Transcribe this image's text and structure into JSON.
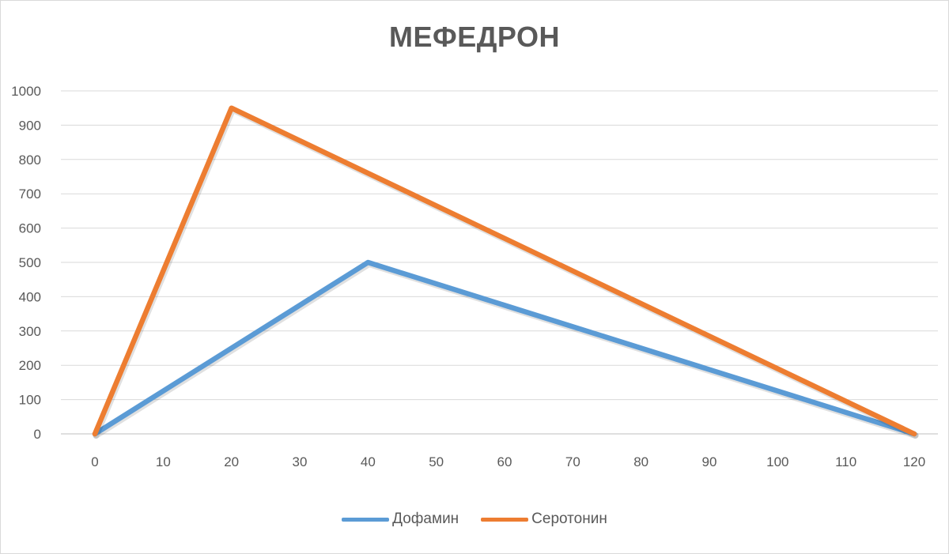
{
  "chart_data": {
    "type": "line",
    "title": "МЕФЕДРОН",
    "x": [
      0,
      20,
      40,
      120
    ],
    "x_ticks": [
      0,
      10,
      20,
      30,
      40,
      50,
      60,
      70,
      80,
      90,
      100,
      110,
      120
    ],
    "y_ticks": [
      0,
      100,
      200,
      300,
      400,
      500,
      600,
      700,
      800,
      900,
      1000
    ],
    "xlim": [
      0,
      120
    ],
    "ylim": [
      0,
      1000
    ],
    "grid": true,
    "legend_position": "bottom",
    "series": [
      {
        "name": "Дофамин",
        "color": "#5b9bd5",
        "points": [
          [
            0,
            0
          ],
          [
            40,
            500
          ],
          [
            120,
            0
          ]
        ]
      },
      {
        "name": "Серотонин",
        "color": "#ed7d31",
        "points": [
          [
            0,
            0
          ],
          [
            20,
            950
          ],
          [
            120,
            0
          ]
        ]
      }
    ]
  }
}
